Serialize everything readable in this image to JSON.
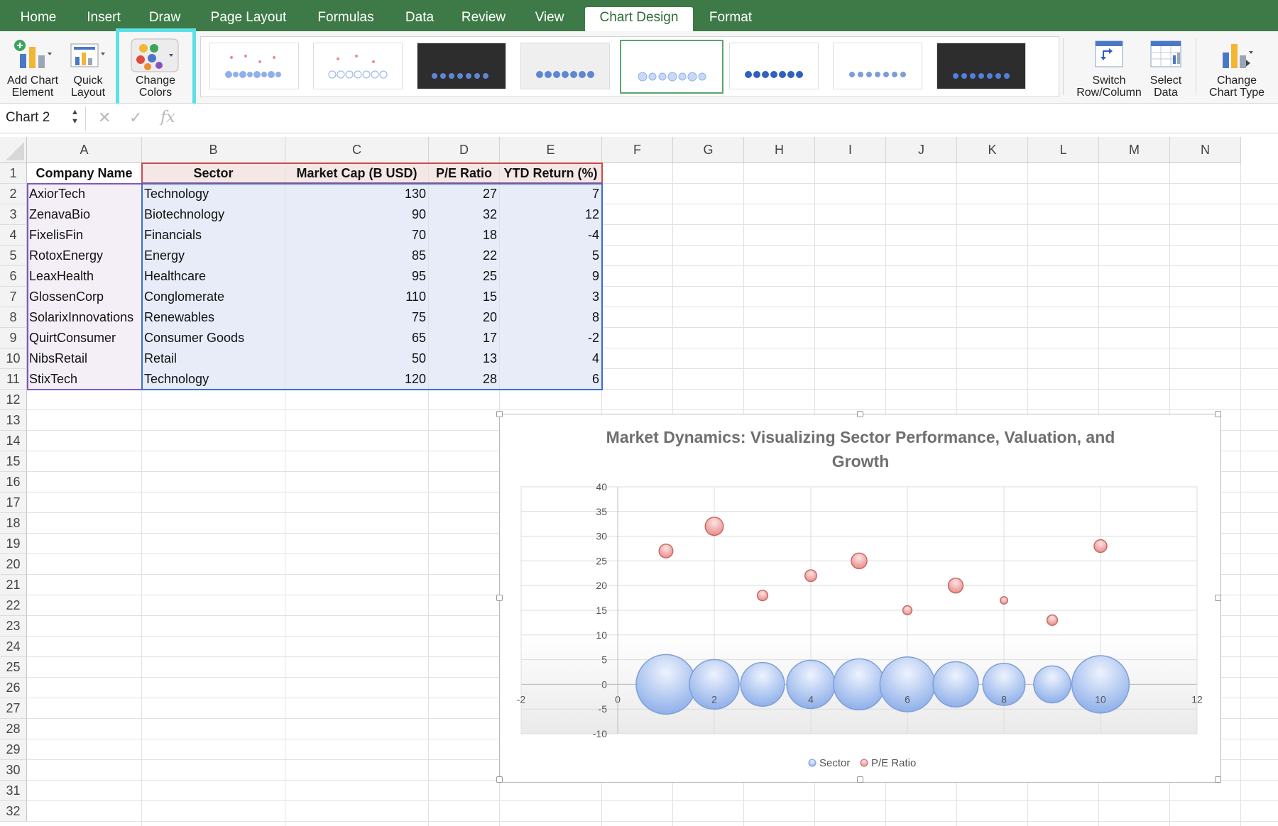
{
  "ribbon": {
    "tabs": [
      {
        "label": "Home"
      },
      {
        "label": "Insert"
      },
      {
        "label": "Draw"
      },
      {
        "label": "Page Layout"
      },
      {
        "label": "Formulas"
      },
      {
        "label": "Data"
      },
      {
        "label": "Review"
      },
      {
        "label": "View"
      },
      {
        "label": "Chart Design"
      },
      {
        "label": "Format"
      }
    ],
    "active_tab": "Chart Design",
    "buttons": {
      "add_chart_element": "Add Chart\nElement",
      "quick_layout": "Quick\nLayout",
      "change_colors": "Change\nColors",
      "switch_row_column": "Switch\nRow/Column",
      "select_data": "Select\nData",
      "change_chart_type": "Change\nChart Type"
    },
    "icons": {
      "add_chart_element": "add-chart-element-icon",
      "quick_layout": "quick-layout-icon",
      "change_colors": "palette-icon",
      "switch_row_column": "switch-row-column-icon",
      "select_data": "select-data-icon",
      "change_chart_type": "bar-chart-icon"
    },
    "highlight_color": "#5ce1e6"
  },
  "formula_bar": {
    "name_box": "Chart 2",
    "cancel_icon": "✕",
    "enter_icon": "✓",
    "function_icon": "fx",
    "formula": ""
  },
  "sheet": {
    "columns": [
      "A",
      "B",
      "C",
      "D",
      "E",
      "F",
      "G",
      "H",
      "I",
      "J",
      "K",
      "L",
      "M",
      "N"
    ],
    "rows": [
      "1",
      "2",
      "3",
      "4",
      "5",
      "6",
      "7",
      "8",
      "9",
      "10",
      "11",
      "12",
      "13",
      "14",
      "15",
      "16",
      "17",
      "18",
      "19",
      "20",
      "21",
      "22",
      "23",
      "24",
      "25",
      "26",
      "27",
      "28",
      "29",
      "30",
      "31",
      "32"
    ],
    "headers": [
      "Company Name",
      "Sector",
      "Market Cap (B USD)",
      "P/E Ratio",
      "YTD Return (%)"
    ],
    "data": [
      [
        "AxiorTech",
        "Technology",
        "130",
        "27",
        "7"
      ],
      [
        "ZenavaBio",
        "Biotechnology",
        "90",
        "32",
        "12"
      ],
      [
        "FixelisFin",
        "Financials",
        "70",
        "18",
        "-4"
      ],
      [
        "RotoxEnergy",
        "Energy",
        "85",
        "22",
        "5"
      ],
      [
        "LeaxHealth",
        "Healthcare",
        "95",
        "25",
        "9"
      ],
      [
        "GlossenCorp",
        "Conglomerate",
        "110",
        "15",
        "3"
      ],
      [
        "SolarixInnovations",
        "Renewables",
        "75",
        "20",
        "8"
      ],
      [
        "QuirtConsumer",
        "Consumer Goods",
        "65",
        "17",
        "-2"
      ],
      [
        "NibsRetail",
        "Retail",
        "50",
        "13",
        "4"
      ],
      [
        "StixTech",
        "Technology",
        "120",
        "28",
        "6"
      ]
    ]
  },
  "chart_data": {
    "type": "scatter",
    "title": "Market Dynamics: Visualizing Sector Performance, Valuation, and Growth",
    "title_lines": [
      "Market Dynamics: Visualizing Sector Performance, Valuation, and",
      "Growth"
    ],
    "xlim": [
      -2,
      12
    ],
    "ylim": [
      -10,
      40
    ],
    "x_ticks": [
      "-2",
      "0",
      "2",
      "4",
      "6",
      "8",
      "10",
      "12"
    ],
    "y_ticks": [
      "40",
      "35",
      "30",
      "25",
      "20",
      "15",
      "10",
      "5",
      "0",
      "-5",
      "-10"
    ],
    "grid": true,
    "legend_position": "bottom",
    "series": [
      {
        "name": "Sector",
        "color": "#8fb0ea",
        "x": [
          1,
          2,
          3,
          4,
          5,
          6,
          7,
          8,
          9,
          10
        ],
        "y": [
          0,
          0,
          0,
          0,
          0,
          0,
          0,
          0,
          0,
          0
        ],
        "size": [
          130,
          90,
          70,
          85,
          95,
          110,
          75,
          65,
          50,
          120
        ]
      },
      {
        "name": "P/E Ratio",
        "color": "#e98d8a",
        "x": [
          1,
          2,
          3,
          4,
          5,
          6,
          7,
          8,
          9,
          10
        ],
        "y": [
          27,
          32,
          18,
          22,
          25,
          15,
          20,
          17,
          13,
          28
        ],
        "size": [
          7,
          12,
          -4,
          5,
          9,
          3,
          8,
          -2,
          4,
          6
        ]
      }
    ]
  }
}
